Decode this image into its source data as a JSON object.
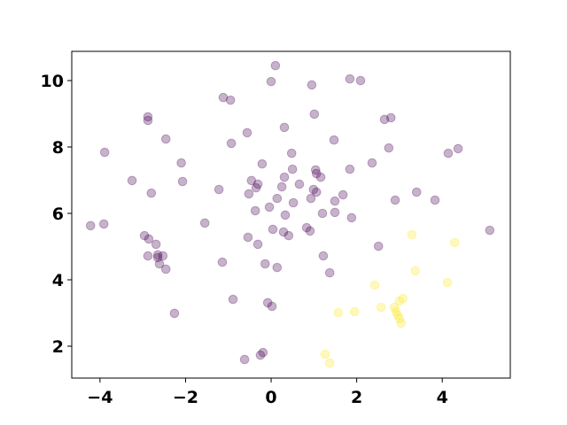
{
  "chart_data": {
    "type": "scatter",
    "series": [
      {
        "color": "#440154",
        "alpha": 0.3,
        "x": [
          0.1,
          0.0,
          0.95,
          1.84,
          2.09,
          -1.12,
          -0.95,
          1.01,
          -2.88,
          -2.88,
          2.65,
          2.8,
          0.31,
          -0.56,
          -2.46,
          1.47,
          -0.93,
          2.75,
          4.37,
          -3.89,
          4.14,
          0.48,
          -2.1,
          2.36,
          -0.21,
          1.04,
          0.5,
          1.06,
          1.84,
          -3.25,
          1.16,
          0.31,
          -2.07,
          -0.46,
          -0.31,
          0.66,
          0.25,
          -0.35,
          -1.22,
          0.99,
          1.06,
          -2.8,
          3.4,
          -0.52,
          1.68,
          0.14,
          0.93,
          2.9,
          1.49,
          3.83,
          0.52,
          -0.04,
          -0.37,
          0.33,
          1.2,
          1.49,
          1.88,
          -1.55,
          -4.22,
          -3.91,
          0.04,
          0.83,
          0.91,
          0.29,
          0.41,
          -2.96,
          -0.54,
          -2.86,
          5.11,
          -2.69,
          -0.31,
          2.51,
          -2.65,
          -2.65,
          -2.53,
          -2.88,
          1.22,
          -2.61,
          -1.14,
          -0.14,
          -2.46,
          0.14,
          1.37,
          -0.89,
          -0.08,
          0.02,
          -2.26,
          -0.19,
          -0.25,
          -0.62
        ],
        "values": [
          10.45,
          9.97,
          9.87,
          10.05,
          10.0,
          9.49,
          9.41,
          8.99,
          8.91,
          8.8,
          8.83,
          8.88,
          8.59,
          8.43,
          8.24,
          8.21,
          8.11,
          7.97,
          7.95,
          7.84,
          7.81,
          7.81,
          7.52,
          7.52,
          7.49,
          7.31,
          7.33,
          7.2,
          7.33,
          6.99,
          7.09,
          7.09,
          6.96,
          6.99,
          6.88,
          6.88,
          6.8,
          6.77,
          6.72,
          6.72,
          6.64,
          6.61,
          6.64,
          6.59,
          6.56,
          6.45,
          6.45,
          6.4,
          6.37,
          6.4,
          6.32,
          6.19,
          6.08,
          5.95,
          6.0,
          6.03,
          5.87,
          5.71,
          5.63,
          5.68,
          5.52,
          5.57,
          5.47,
          5.44,
          5.33,
          5.33,
          5.28,
          5.23,
          5.49,
          5.07,
          5.07,
          5.01,
          4.75,
          4.67,
          4.72,
          4.72,
          4.72,
          4.48,
          4.53,
          4.48,
          4.32,
          4.37,
          4.21,
          3.41,
          3.31,
          3.2,
          2.99,
          1.81,
          1.73,
          1.6
        ]
      },
      {
        "color": "#fde725",
        "alpha": 0.3,
        "x": [
          3.29,
          4.29,
          3.37,
          4.12,
          2.42,
          3.08,
          3.0,
          1.57,
          1.95,
          2.57,
          2.88,
          2.92,
          2.96,
          3.0,
          3.04,
          1.26,
          1.37
        ],
        "values": [
          5.36,
          5.12,
          4.27,
          3.92,
          3.84,
          3.44,
          3.36,
          3.01,
          3.04,
          3.17,
          3.17,
          3.04,
          2.93,
          2.83,
          2.69,
          1.76,
          1.49
        ]
      }
    ],
    "xlim": [
      -4.66,
      5.59
    ],
    "ylim": [
      1.04,
      10.88
    ],
    "xticks": [
      {
        "value": -4,
        "label": "−4"
      },
      {
        "value": -2,
        "label": "−2"
      },
      0,
      2,
      4
    ],
    "yticks": [
      2,
      4,
      6,
      8,
      10
    ],
    "grid": false
  }
}
